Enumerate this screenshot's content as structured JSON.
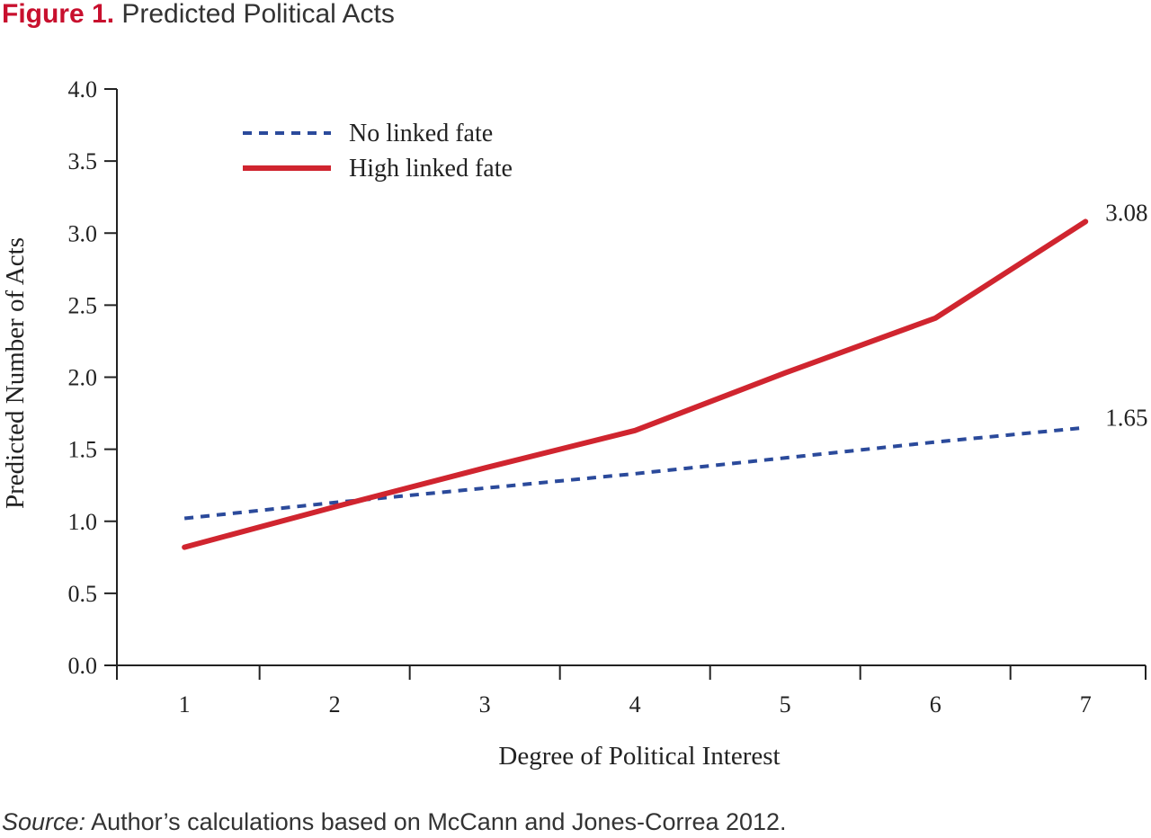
{
  "figure": {
    "label": "Figure 1.",
    "title": "Predicted Political Acts"
  },
  "source": {
    "label": "Source:",
    "text": "Author’s calculations based on McCann and Jones-Correa 2012."
  },
  "colors": {
    "no_linked_fate": "#2b4a9b",
    "high_linked_fate": "#d0252f",
    "axis": "#222222",
    "title_accent": "#c8102e"
  },
  "chart_data": {
    "type": "line",
    "xlabel": "Degree of Political Interest",
    "ylabel": "Predicted Number of Acts",
    "x": [
      1,
      2,
      3,
      4,
      5,
      6,
      7
    ],
    "xlim": [
      0.55,
      7.4
    ],
    "ylim": [
      0,
      4
    ],
    "yticks": [
      "0.0",
      "0.5",
      "1.0",
      "1.5",
      "2.0",
      "2.5",
      "3.0",
      "3.5",
      "4.0"
    ],
    "xticks": [
      "1",
      "2",
      "3",
      "4",
      "5",
      "6",
      "7"
    ],
    "legend_position": "top-left",
    "grid": false,
    "series": [
      {
        "name": "No linked fate",
        "style": "dashed",
        "color": "#2b4a9b",
        "values": [
          1.02,
          1.13,
          1.23,
          1.33,
          1.44,
          1.55,
          1.65
        ],
        "end_label": "1.65"
      },
      {
        "name": "High linked fate",
        "style": "solid",
        "color": "#d0252f",
        "values": [
          0.82,
          1.1,
          1.37,
          1.63,
          2.03,
          2.41,
          3.08
        ],
        "end_label": "3.08"
      }
    ]
  }
}
